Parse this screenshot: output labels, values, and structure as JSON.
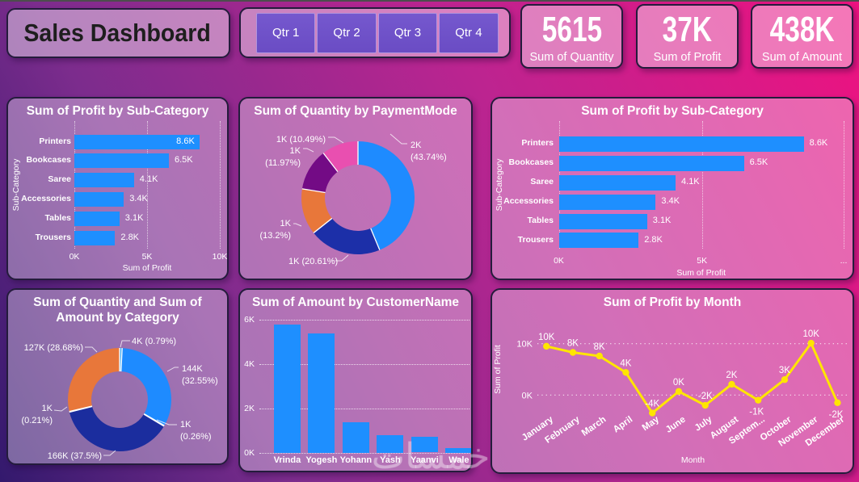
{
  "header": {
    "title": "Sales Dashboard"
  },
  "slicer": {
    "buttons": [
      "Qtr 1",
      "Qtr 2",
      "Qtr 3",
      "Qtr 4"
    ]
  },
  "kpis": [
    {
      "value": "5615",
      "label": "Sum of Quantity"
    },
    {
      "value": "37K",
      "label": "Sum of Profit"
    },
    {
      "value": "438K",
      "label": "Sum of Amount"
    }
  ],
  "watermark": "خمسات",
  "colors": {
    "bar_blue": "#1e8fff",
    "donut_navy": "#1c2fa8",
    "donut_orange": "#e8773a",
    "donut_purple": "#730b85",
    "donut_pink": "#e94fb0",
    "donut_lightblue": "#4fb0f0",
    "line_yellow": "#ffe500",
    "slicer_purple": "#6f52c8"
  },
  "chart_data": [
    {
      "type": "bar",
      "orientation": "horizontal",
      "title": "Sum of Profit by Sub-Category",
      "categories": [
        "Printers",
        "Bookcases",
        "Saree",
        "Accessories",
        "Tables",
        "Trousers"
      ],
      "values": [
        8.6,
        6.5,
        4.1,
        3.4,
        3.1,
        2.8
      ],
      "value_labels": [
        "8.6K",
        "6.5K",
        "4.1K",
        "3.4K",
        "3.1K",
        "2.8K"
      ],
      "xticks": [
        "0K",
        "5K",
        "10K"
      ],
      "xlim": [
        0,
        10
      ],
      "xlabel": "Sum of Profit",
      "ylabel": "Sub-Category",
      "bar_color": "#1e8fff"
    },
    {
      "type": "donut",
      "title": "Sum of Quantity by PaymentMode",
      "slices": [
        {
          "label": "2K (43.74%)",
          "value": 43.74,
          "color": "#1e8bff",
          "lines": [
            "2K",
            "(43.74%)"
          ]
        },
        {
          "label": "1K (20.61%)",
          "value": 20.61,
          "color": "#1c2fa8",
          "lines": [
            "1K (20.61%)"
          ]
        },
        {
          "label": "1K (13.2%)",
          "value": 13.2,
          "color": "#e8773a",
          "lines": [
            "1K",
            "(13.2%)"
          ]
        },
        {
          "label": "1K (11.97%)",
          "value": 11.97,
          "color": "#730b85",
          "lines": [
            "1K",
            "(11.97%)"
          ]
        },
        {
          "label": "1K (10.49%)",
          "value": 10.49,
          "color": "#e94fb0",
          "lines": [
            "1K (10.49%)"
          ]
        }
      ]
    },
    {
      "type": "bar",
      "orientation": "horizontal",
      "title": "Sum of Profit by Sub-Category",
      "categories": [
        "Printers",
        "Bookcases",
        "Saree",
        "Accessories",
        "Tables",
        "Trousers"
      ],
      "values": [
        8.6,
        6.5,
        4.1,
        3.4,
        3.1,
        2.8
      ],
      "value_labels": [
        "8.6K",
        "6.5K",
        "4.1K",
        "3.4K",
        "3.1K",
        "2.8K"
      ],
      "xticks": [
        "0K",
        "5K",
        "..."
      ],
      "xlim": [
        0,
        10
      ],
      "xlabel": "Sum of Profit",
      "ylabel": "Sub-Category",
      "bar_color": "#1e8fff"
    },
    {
      "type": "donut",
      "title": "Sum of Quantity and Sum of Amount by Category",
      "slices": [
        {
          "label": "4K (0.79%)",
          "value": 0.79,
          "color": "#4fb0f0",
          "lines": [
            "4K (0.79%)"
          ]
        },
        {
          "label": "144K (32.55%)",
          "value": 32.55,
          "color": "#1e8bff",
          "lines": [
            "144K",
            "(32.55%)"
          ]
        },
        {
          "label": "1K (0.26%)",
          "value": 0.26,
          "color": "#2a3fb0",
          "lines": [
            "1K",
            "(0.26%)"
          ]
        },
        {
          "label": "166K (37.5%)",
          "value": 37.5,
          "color": "#1b2d9e",
          "lines": [
            "166K (37.5%)"
          ]
        },
        {
          "label": "1K (0.21%)",
          "value": 0.21,
          "color": "#f08a45",
          "lines": [
            "1K",
            "(0.21%)"
          ]
        },
        {
          "label": "127K (28.68%)",
          "value": 28.68,
          "color": "#e8773a",
          "lines": [
            "127K (28.68%)"
          ]
        }
      ]
    },
    {
      "type": "bar",
      "orientation": "vertical",
      "title": "Sum of Amount by CustomerName",
      "categories": [
        "Vrinda",
        "Yogesh",
        "Yohann",
        "Yash",
        "Yaanvi",
        "Wale"
      ],
      "values": [
        5.75,
        5.35,
        1.35,
        0.8,
        0.72,
        0.2
      ],
      "yticks": [
        "0K",
        "2K",
        "4K",
        "6K"
      ],
      "ylim": [
        0,
        6
      ],
      "bar_color": "#1e8fff"
    },
    {
      "type": "line",
      "title": "Sum of Profit by Month",
      "categories": [
        "January",
        "February",
        "March",
        "April",
        "May",
        "June",
        "July",
        "August",
        "Septem...",
        "October",
        "November",
        "December"
      ],
      "values": [
        9.5,
        8.3,
        7.6,
        4.4,
        -3.5,
        0.7,
        -2.0,
        2.1,
        -1.0,
        3.0,
        10.1,
        -1.5
      ],
      "point_labels": [
        "10K",
        "8K",
        "8K",
        "4K",
        "-4K",
        "0K",
        "-2K",
        "2K",
        "-1K",
        "3K",
        "10K",
        "-2K"
      ],
      "yticks": [
        "0K",
        "10K"
      ],
      "xlabel": "Month",
      "ylabel": "Sum of Profit",
      "line_color": "#ffe500"
    }
  ]
}
